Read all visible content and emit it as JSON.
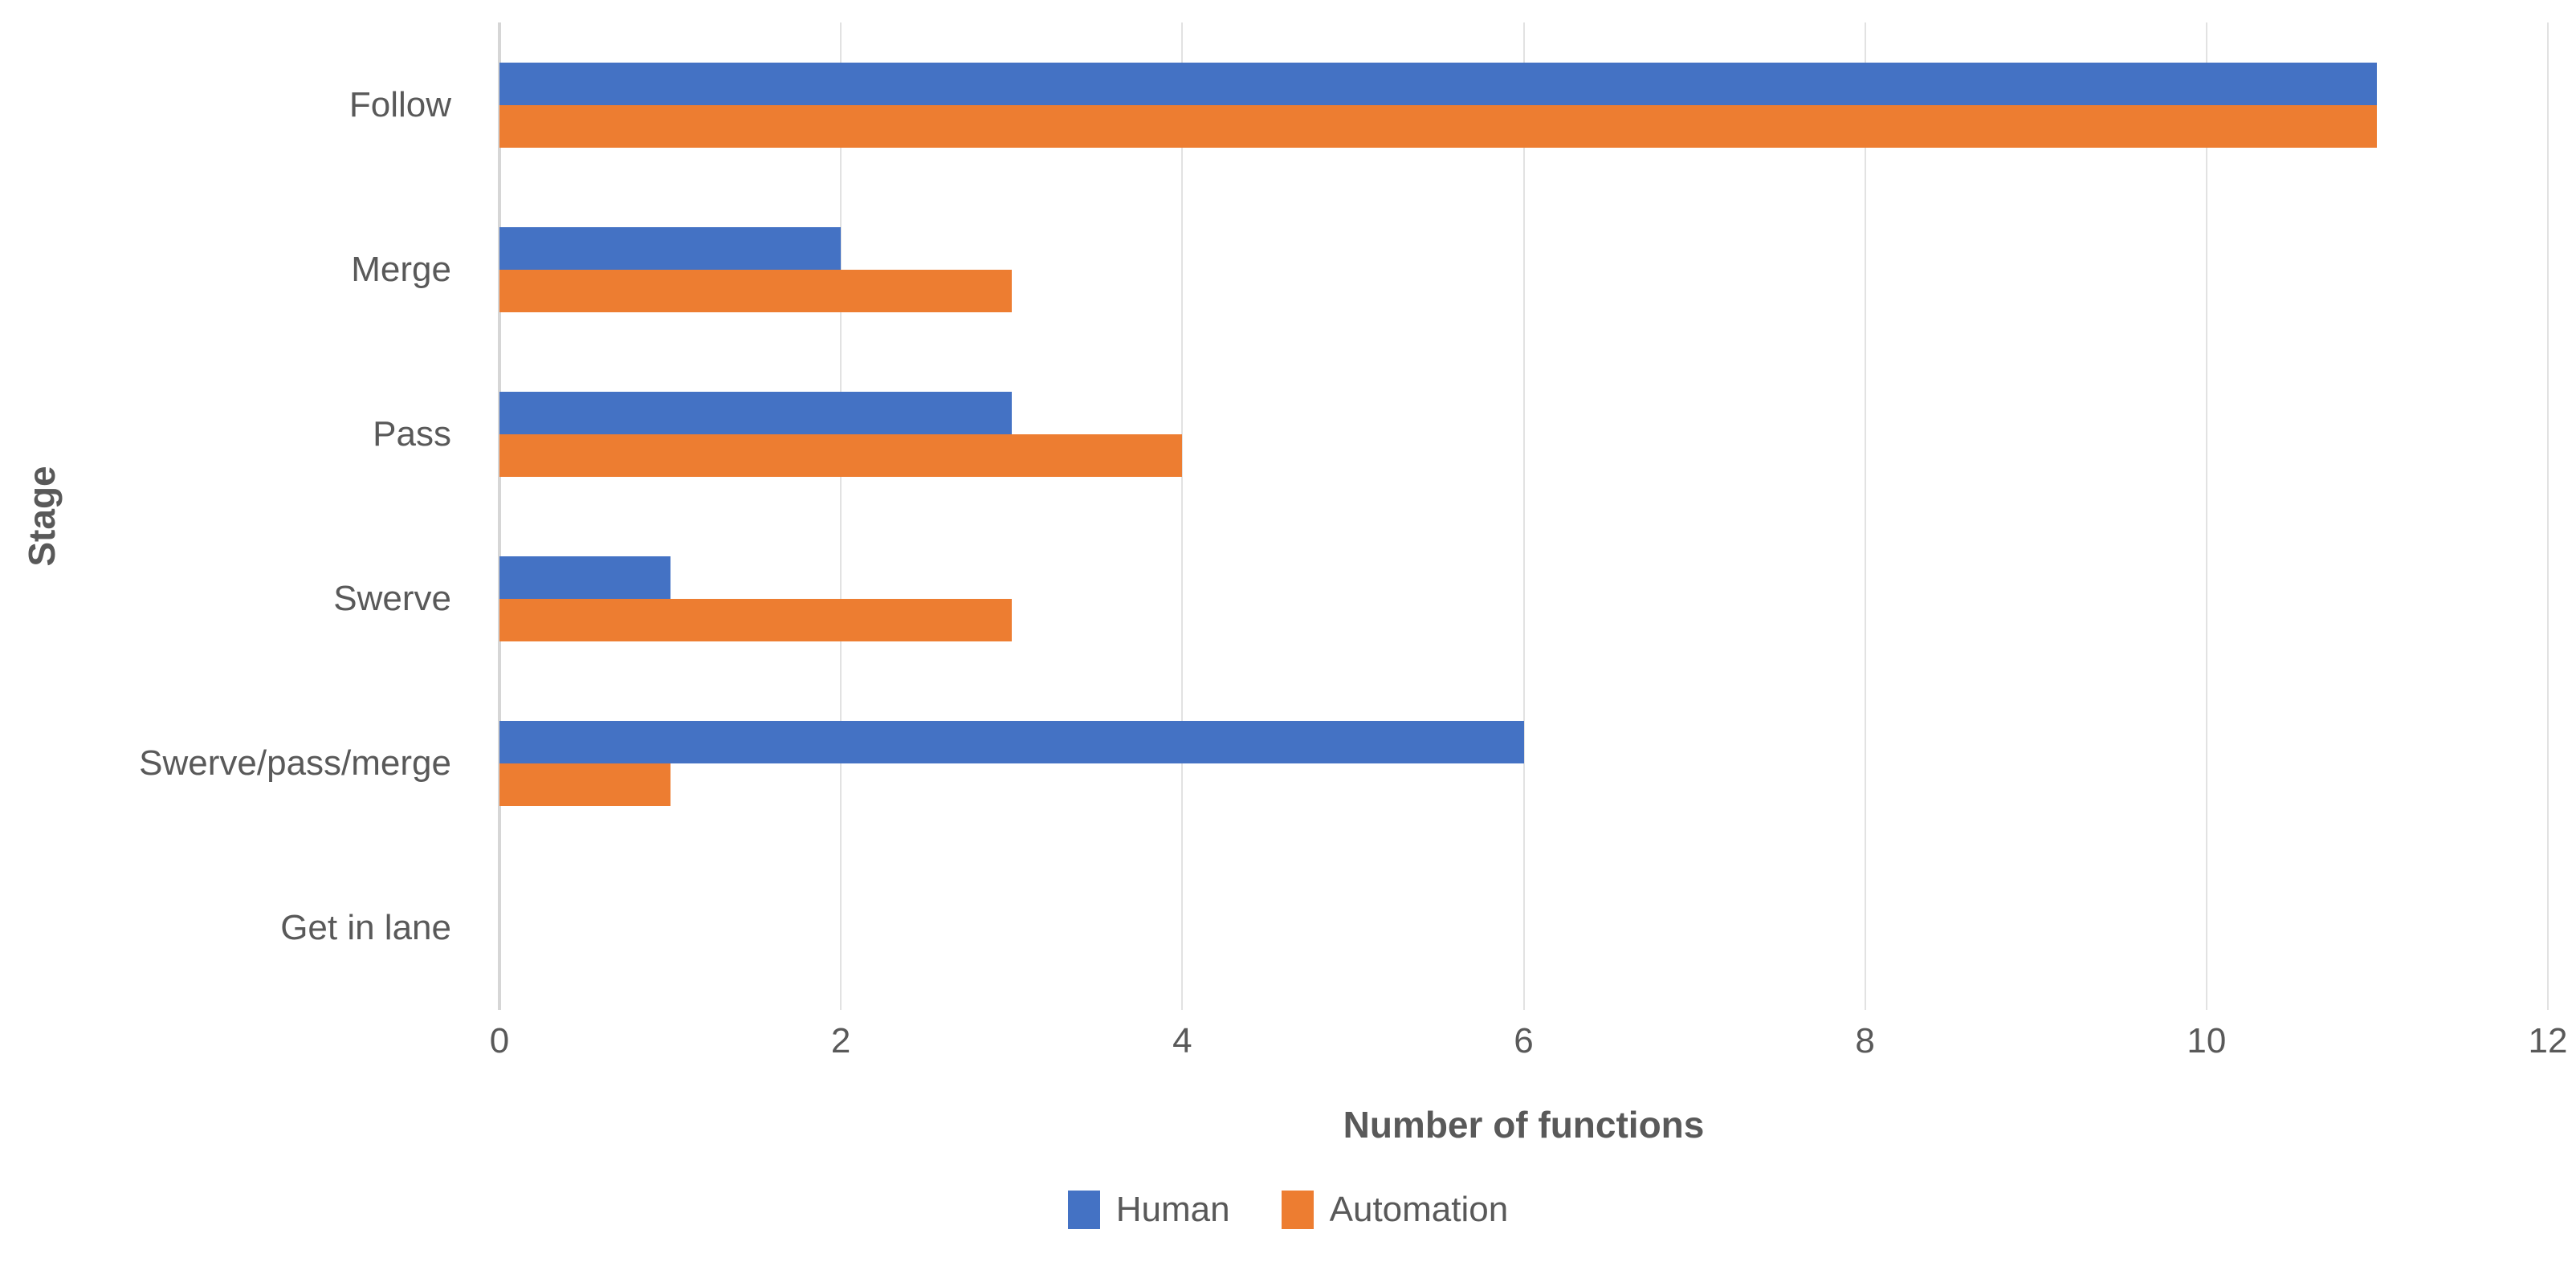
{
  "figure": {
    "title": "",
    "x_axis_title": "Number of functions",
    "y_axis_title": "Stage"
  },
  "chart_data": {
    "type": "bar",
    "orientation": "horizontal",
    "title": "",
    "xlabel": "Number of functions",
    "ylabel": "Stage",
    "categories": [
      "Follow",
      "Merge",
      "Pass",
      "Swerve",
      "Swerve/pass/merge",
      "Get in lane"
    ],
    "series": [
      {
        "name": "Human",
        "color": "#4472C4",
        "values": [
          11,
          2,
          3,
          1,
          6,
          0
        ]
      },
      {
        "name": "Automation",
        "color": "#ED7D31",
        "values": [
          11,
          3,
          4,
          3,
          1,
          0
        ]
      }
    ],
    "xlim": [
      0,
      12
    ],
    "x_ticks": [
      0,
      2,
      4,
      6,
      8,
      10,
      12
    ],
    "grid": "vertical-only",
    "legend_position": "bottom",
    "colors": {
      "grid_line": "#e2e2e2",
      "zero_line": "#d6d6d6",
      "text": "#595959"
    }
  }
}
